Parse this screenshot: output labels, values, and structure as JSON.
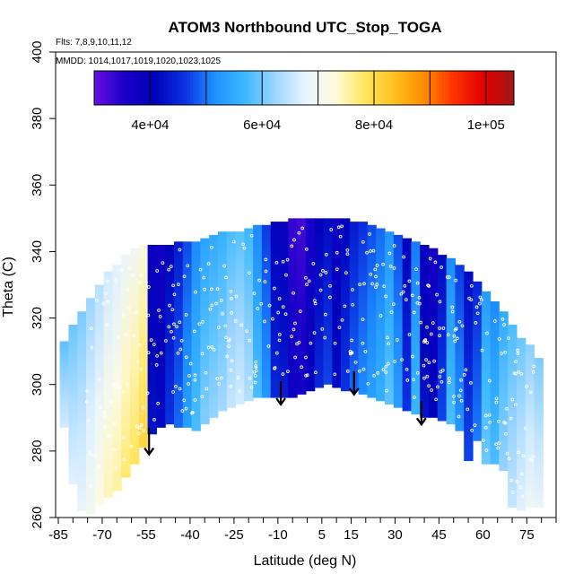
{
  "chart_data": {
    "type": "heatmap",
    "title": "ATOM3 Northbound UTC_Stop_TOGA",
    "flights_note": "Flts: 7,8,9,10,11,12",
    "dates_note": "MMDD: 1014,1017,1019,1020,1023,1025",
    "xlabel": "Latitude (deg N)",
    "ylabel": "Theta (C)",
    "xlim": [
      -85,
      85
    ],
    "ylim": [
      260,
      400
    ],
    "x_ticks": [
      -85,
      -70,
      -55,
      -40,
      -25,
      -10,
      5,
      15,
      30,
      45,
      60,
      75
    ],
    "x_minor_ticks": [
      -80,
      -75,
      -65,
      -60,
      -50,
      -45,
      -35,
      -30,
      -20,
      -15,
      -5,
      0,
      10,
      20,
      25,
      35,
      40,
      50,
      55,
      65,
      70,
      80,
      85
    ],
    "y_ticks": [
      260,
      280,
      300,
      320,
      340,
      360,
      380,
      400
    ],
    "colorbar": {
      "range": [
        30000,
        105000
      ],
      "ticks": [
        40000,
        60000,
        80000,
        100000
      ],
      "tick_labels": [
        "4e+04",
        "6e+04",
        "8e+04",
        "1e+05"
      ],
      "dividers": [
        40000,
        50000,
        60000,
        70000,
        80000,
        90000,
        100000
      ],
      "colors": [
        "#6a0fe0",
        "#1a00c8",
        "#0000b8",
        "#0a30e0",
        "#1e90ff",
        "#3ab8ff",
        "#9ad4ff",
        "#e6f4ff",
        "#fffbe0",
        "#ffe760",
        "#ffc020",
        "#ff8c00",
        "#ff3000",
        "#e00000",
        "#a01818"
      ]
    },
    "field_columns": [
      {
        "lat": -83,
        "top": 313,
        "bottom": 287,
        "value": 63000
      },
      {
        "lat": -80,
        "top": 318,
        "bottom": 270,
        "value": 64000
      },
      {
        "lat": -77,
        "top": 322,
        "bottom": 262,
        "value": 65000
      },
      {
        "lat": -74,
        "top": 326,
        "bottom": 261,
        "value": 67000
      },
      {
        "lat": -71,
        "top": 330,
        "bottom": 264,
        "value": 69000
      },
      {
        "lat": -68,
        "top": 334,
        "bottom": 266,
        "value": 71000
      },
      {
        "lat": -65,
        "top": 336,
        "bottom": 268,
        "value": 72000
      },
      {
        "lat": -62,
        "top": 339,
        "bottom": 272,
        "value": 74000
      },
      {
        "lat": -59,
        "top": 341,
        "bottom": 276,
        "value": 75000
      },
      {
        "lat": -56,
        "top": 342,
        "bottom": 281,
        "value": 77000
      },
      {
        "lat": -53,
        "top": 342,
        "bottom": 285,
        "value": 41000
      },
      {
        "lat": -50,
        "top": 342,
        "bottom": 287,
        "value": 40000
      },
      {
        "lat": -47,
        "top": 342,
        "bottom": 288,
        "value": 44000
      },
      {
        "lat": -44,
        "top": 343,
        "bottom": 287,
        "value": 47000
      },
      {
        "lat": -41,
        "top": 343,
        "bottom": 287,
        "value": 51000
      },
      {
        "lat": -38,
        "top": 343,
        "bottom": 286,
        "value": 55000
      },
      {
        "lat": -35,
        "top": 344,
        "bottom": 288,
        "value": 58000
      },
      {
        "lat": -32,
        "top": 345,
        "bottom": 290,
        "value": 59000
      },
      {
        "lat": -29,
        "top": 346,
        "bottom": 292,
        "value": 60000
      },
      {
        "lat": -26,
        "top": 346,
        "bottom": 293,
        "value": 62000
      },
      {
        "lat": -23,
        "top": 346,
        "bottom": 294,
        "value": 63000
      },
      {
        "lat": -20,
        "top": 347,
        "bottom": 295,
        "value": 61000
      },
      {
        "lat": -17,
        "top": 348,
        "bottom": 296,
        "value": 55000
      },
      {
        "lat": -14,
        "top": 348,
        "bottom": 296,
        "value": 50000
      },
      {
        "lat": -11,
        "top": 349,
        "bottom": 296,
        "value": 43000
      },
      {
        "lat": -8,
        "top": 349,
        "bottom": 296,
        "value": 42000
      },
      {
        "lat": -5,
        "top": 350,
        "bottom": 296,
        "value": 36000
      },
      {
        "lat": -2,
        "top": 350,
        "bottom": 297,
        "value": 35000
      },
      {
        "lat": 1,
        "top": 350,
        "bottom": 298,
        "value": 38000
      },
      {
        "lat": 4,
        "top": 350,
        "bottom": 299,
        "value": 43000
      },
      {
        "lat": 7,
        "top": 350,
        "bottom": 300,
        "value": 45000
      },
      {
        "lat": 10,
        "top": 350,
        "bottom": 299,
        "value": 40000
      },
      {
        "lat": 13,
        "top": 350,
        "bottom": 298,
        "value": 44000
      },
      {
        "lat": 16,
        "top": 349,
        "bottom": 298,
        "value": 47000
      },
      {
        "lat": 19,
        "top": 349,
        "bottom": 297,
        "value": 49000
      },
      {
        "lat": 22,
        "top": 348,
        "bottom": 296,
        "value": 51000
      },
      {
        "lat": 25,
        "top": 347,
        "bottom": 295,
        "value": 53000
      },
      {
        "lat": 28,
        "top": 346,
        "bottom": 294,
        "value": 56000
      },
      {
        "lat": 31,
        "top": 345,
        "bottom": 293,
        "value": 51000
      },
      {
        "lat": 34,
        "top": 344,
        "bottom": 292,
        "value": 44000
      },
      {
        "lat": 37,
        "top": 343,
        "bottom": 291,
        "value": 54000
      },
      {
        "lat": 40,
        "top": 342,
        "bottom": 290,
        "value": 41000
      },
      {
        "lat": 43,
        "top": 341,
        "bottom": 290,
        "value": 39000
      },
      {
        "lat": 46,
        "top": 339,
        "bottom": 289,
        "value": 45000
      },
      {
        "lat": 49,
        "top": 338,
        "bottom": 288,
        "value": 55000
      },
      {
        "lat": 52,
        "top": 336,
        "bottom": 286,
        "value": 50000
      },
      {
        "lat": 55,
        "top": 334,
        "bottom": 277,
        "value": 45000
      },
      {
        "lat": 58,
        "top": 331,
        "bottom": 283,
        "value": 48000
      },
      {
        "lat": 61,
        "top": 328,
        "bottom": 276,
        "value": 57000
      },
      {
        "lat": 64,
        "top": 325,
        "bottom": 276,
        "value": 55000
      },
      {
        "lat": 67,
        "top": 322,
        "bottom": 274,
        "value": 59000
      },
      {
        "lat": 70,
        "top": 318,
        "bottom": 263,
        "value": 62000
      },
      {
        "lat": 73,
        "top": 314,
        "bottom": 262,
        "value": 64000
      },
      {
        "lat": 76,
        "top": 312,
        "bottom": 263,
        "value": 66000
      },
      {
        "lat": 79,
        "top": 308,
        "bottom": 263,
        "value": 65000
      }
    ],
    "arrows": [
      {
        "lat": -54,
        "theta_from": 287,
        "theta_to": 279
      },
      {
        "lat": -9,
        "theta_from": 301,
        "theta_to": 294
      },
      {
        "lat": 16,
        "theta_from": 304,
        "theta_to": 297
      },
      {
        "lat": 39,
        "theta_from": 295,
        "theta_to": 288
      }
    ]
  }
}
